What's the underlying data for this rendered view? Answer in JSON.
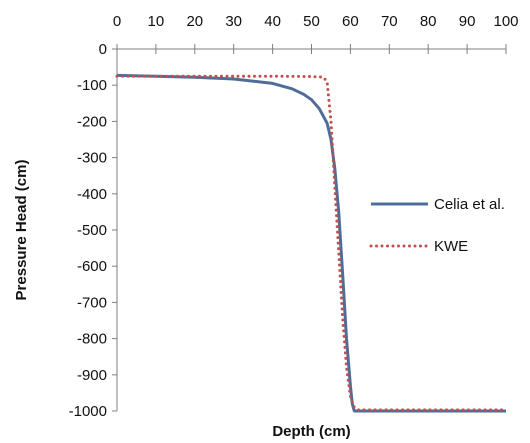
{
  "chart_data": {
    "type": "line",
    "title": "",
    "xlabel": "Depth (cm)",
    "ylabel": "Pressure Head (cm)",
    "xlim": [
      0,
      100
    ],
    "ylim": [
      -1000,
      0
    ],
    "x_ticks": [
      0,
      10,
      20,
      30,
      40,
      50,
      60,
      70,
      80,
      90,
      100
    ],
    "y_ticks": [
      0,
      -100,
      -200,
      -300,
      -400,
      -500,
      -600,
      -700,
      -800,
      -900,
      -1000
    ],
    "x_axis_position": "top",
    "grid": false,
    "legend_position": "right",
    "series": [
      {
        "name": "Celia et al.",
        "color": "#4F6D97",
        "style": "solid",
        "x": [
          0,
          10,
          20,
          30,
          40,
          45,
          48,
          50,
          52,
          54,
          55,
          56,
          57,
          58,
          59,
          60,
          60.5,
          61,
          62,
          70,
          80,
          90,
          100
        ],
        "y": [
          -73,
          -75,
          -78,
          -83,
          -95,
          -110,
          -125,
          -140,
          -165,
          -205,
          -250,
          -330,
          -450,
          -620,
          -800,
          -930,
          -980,
          -1000,
          -1000,
          -1000,
          -1000,
          -1000,
          -1000
        ]
      },
      {
        "name": "KWE",
        "color": "#C0504D",
        "style": "dotted",
        "x": [
          0,
          10,
          20,
          30,
          40,
          50,
          53,
          54,
          55,
          56,
          57,
          58,
          59,
          60,
          61,
          62,
          70,
          80,
          90,
          100
        ],
        "y": [
          -75,
          -75,
          -75,
          -75,
          -75,
          -76,
          -78,
          -90,
          -200,
          -380,
          -560,
          -740,
          -880,
          -960,
          -990,
          -997,
          -997,
          -997,
          -997,
          -997
        ]
      }
    ]
  }
}
